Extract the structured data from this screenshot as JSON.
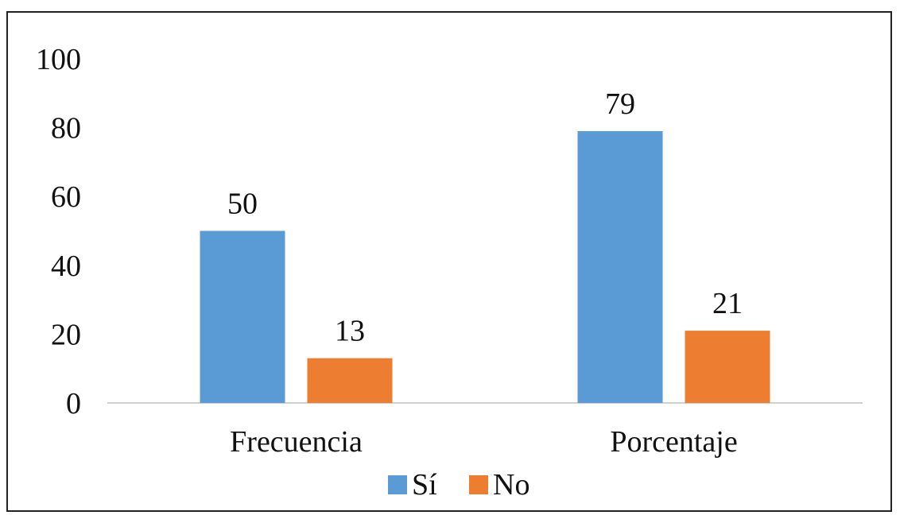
{
  "chart_data": {
    "type": "bar",
    "categories": [
      "Frecuencia",
      "Porcentaje"
    ],
    "series": [
      {
        "name": "Sí",
        "values": [
          50,
          79
        ],
        "color": "#5B9BD5"
      },
      {
        "name": "No",
        "values": [
          13,
          21
        ],
        "color": "#ED7D31"
      }
    ],
    "ylim": [
      0,
      100
    ],
    "yticks": [
      "0",
      "20",
      "40",
      "60",
      "80",
      "100"
    ],
    "ytick_values": [
      0,
      20,
      40,
      60,
      80,
      100
    ],
    "grid": false,
    "legend": "bottom-center",
    "data_labels": true
  }
}
